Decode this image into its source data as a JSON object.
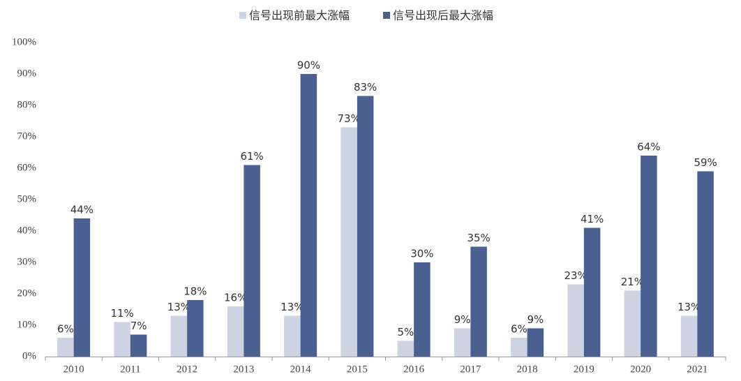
{
  "chart_data": {
    "type": "bar",
    "categories": [
      "2010",
      "2011",
      "2012",
      "2013",
      "2014",
      "2015",
      "2016",
      "2017",
      "2018",
      "2019",
      "2020",
      "2021"
    ],
    "series": [
      {
        "name": "信号出现前最大涨幅",
        "color": "#cdd3e3",
        "values": [
          6,
          11,
          13,
          16,
          13,
          73,
          5,
          9,
          6,
          23,
          21,
          13
        ],
        "value_labels": [
          "6%",
          "11%",
          "13%",
          "16%",
          "13%",
          "73%",
          "5%",
          "9%",
          "6%",
          "23%",
          "21%",
          "13%"
        ]
      },
      {
        "name": "信号出现后最大涨幅",
        "color": "#4a6090",
        "values": [
          44,
          7,
          18,
          61,
          90,
          83,
          30,
          35,
          9,
          41,
          64,
          59
        ],
        "value_labels": [
          "44%",
          "7%",
          "18%",
          "61%",
          "90%",
          "83%",
          "30%",
          "35%",
          "9%",
          "41%",
          "64%",
          "59%"
        ]
      }
    ],
    "ylim": [
      0,
      100
    ],
    "yticks": [
      {
        "value": 0,
        "label": "0%"
      },
      {
        "value": 10,
        "label": "10%"
      },
      {
        "value": 20,
        "label": "20%"
      },
      {
        "value": 30,
        "label": "30%"
      },
      {
        "value": 40,
        "label": "40%"
      },
      {
        "value": 50,
        "label": "50%"
      },
      {
        "value": 60,
        "label": "60%"
      },
      {
        "value": 70,
        "label": "70%"
      },
      {
        "value": 80,
        "label": "80%"
      },
      {
        "value": 90,
        "label": "90%"
      },
      {
        "value": 100,
        "label": "100%"
      }
    ],
    "grid": false
  }
}
